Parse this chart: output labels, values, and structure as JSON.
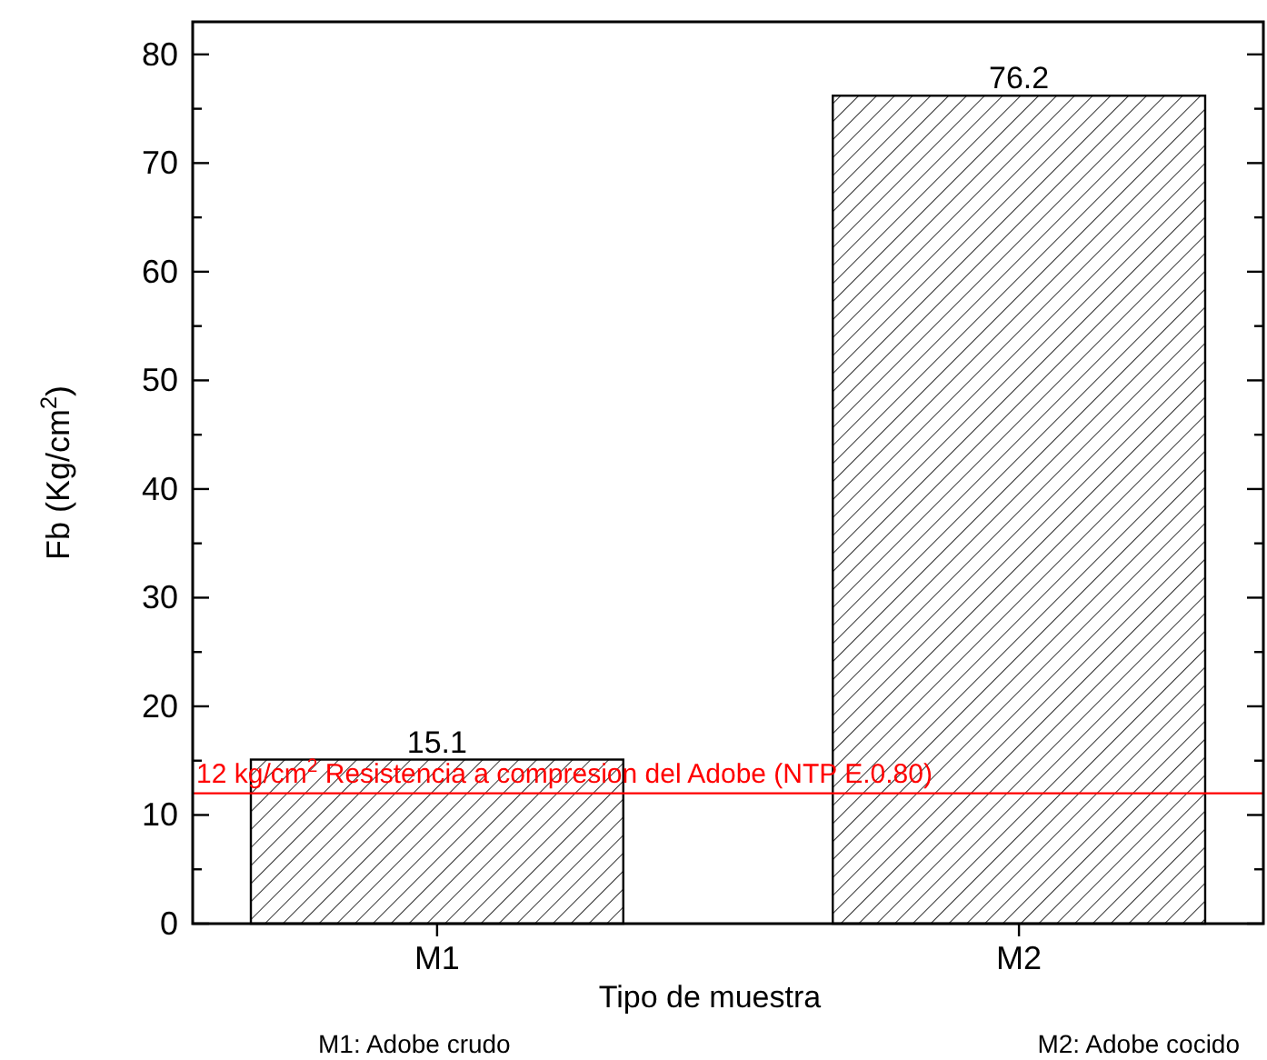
{
  "chart_data": {
    "type": "bar",
    "xlabel": "Tipo de muestra",
    "ylabel": "Fb (Kg/cm$^{2}$)",
    "categories": [
      "M1",
      "M2"
    ],
    "values": [
      15.1,
      76.2
    ],
    "color": "#000000",
    "data_labels": true,
    "ylim": [
      0,
      83
    ],
    "yticks": [
      0,
      {
        "value": 5,
        "label": null
      },
      10,
      {
        "value": 15,
        "label": null
      },
      20,
      {
        "value": 25,
        "label": null
      },
      30,
      {
        "value": 35,
        "label": null
      },
      40,
      {
        "value": 45,
        "label": null
      },
      50,
      {
        "value": 55,
        "label": null
      },
      60,
      {
        "value": 65,
        "label": null
      },
      70,
      {
        "value": 75,
        "label": null
      },
      80
    ],
    "ref_lines": [
      {
        "axis": "y",
        "value": 12,
        "label": "12 kg/cm$^{2}$ Resistencia a compresion del Adobe (NTP E.0.80)",
        "color": "#ff0000"
      }
    ],
    "annotations": [
      "M1: Adobe crudo",
      "M2: Adobe cocido"
    ]
  }
}
